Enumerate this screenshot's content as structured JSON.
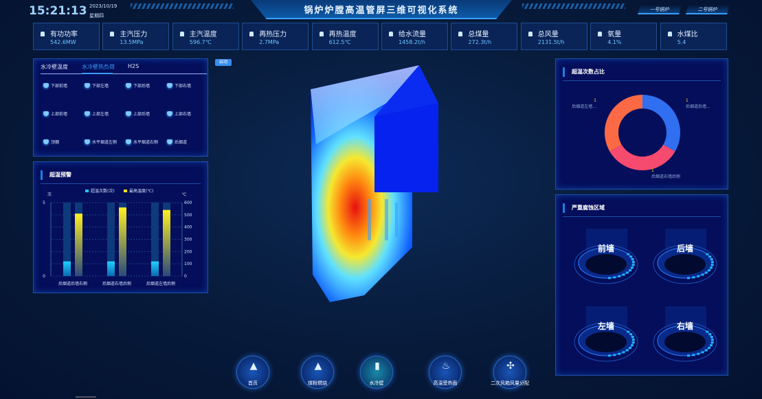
{
  "header": {
    "time": "15:21:13",
    "date": "2023/10/19",
    "weekday": "星期四",
    "title": "锅炉炉膛高温管屏三维可视化系统",
    "boiler_buttons": [
      "一号锅炉",
      "二号锅炉"
    ]
  },
  "kpis": [
    {
      "label": "有功功率",
      "value": "542.6MW"
    },
    {
      "label": "主汽压力",
      "value": "13.5MPa"
    },
    {
      "label": "主汽温度",
      "value": "596.7℃"
    },
    {
      "label": "再热压力",
      "value": "2.7MPa"
    },
    {
      "label": "再热温度",
      "value": "612.5℃"
    },
    {
      "label": "给水流量",
      "value": "1458.2t/h"
    },
    {
      "label": "总煤量",
      "value": "272.3t/h"
    },
    {
      "label": "总风量",
      "value": "2131.5t/h"
    },
    {
      "label": "氧量",
      "value": "4.1%"
    },
    {
      "label": "水煤比",
      "value": "5.4"
    }
  ],
  "walls_panel": {
    "tabs": [
      "水冷壁温度",
      "水冷壁热负荷",
      "H2S"
    ],
    "active_tab": 1,
    "items": [
      "下部前墙",
      "下部左墙",
      "下部后墙",
      "下部右墙",
      "上部前墙",
      "上部左墙",
      "上部后墙",
      "上部右墙",
      "顶棚",
      "水平烟道左侧",
      "水平烟道右侧",
      "后烟道"
    ]
  },
  "start_button": "启动",
  "alarm_panel": {
    "title": "超温预警"
  },
  "chart_data": [
    {
      "type": "bar",
      "categories": [
        "后烟道后墙右侧",
        "后烟道右墙后侧",
        "后烟道左墙后侧"
      ],
      "series": [
        {
          "name": "超温次数(次)",
          "values": [
            1,
            1,
            1
          ],
          "axis": "left",
          "color": "#1fc8ff"
        },
        {
          "name": "最高温度(℃)",
          "values": [
            510,
            560,
            540
          ],
          "axis": "right",
          "color": "#f5e020"
        }
      ],
      "ylabel_left": "次",
      "ylabel_right": "℃",
      "ylim_left": [
        0,
        5
      ],
      "ylim_right": [
        0,
        600
      ],
      "yticks_left": [
        0,
        5
      ],
      "yticks_right": [
        0,
        100,
        200,
        300,
        400,
        500,
        600
      ],
      "legend": "top",
      "grid": true
    },
    {
      "type": "pie",
      "title": "超温次数占比",
      "donut": true,
      "slices": [
        {
          "label": "后烟道后墙...",
          "value": 1,
          "color": "#2f6ff0"
        },
        {
          "label": "后烟道右墙后侧",
          "value": 1,
          "color": "#f64a6e"
        },
        {
          "label": "后烟道左墙...",
          "value": 1,
          "color": "#fb6a45"
        }
      ]
    }
  ],
  "corrosion_panel": {
    "title": "严重腐蚀区域",
    "areas": [
      "前墙",
      "后墙",
      "左墙",
      "右墙"
    ]
  },
  "bottom_nav": [
    {
      "label": "首页",
      "icon": "boiler-icon"
    },
    {
      "label": "煤粉燃烧",
      "icon": "boiler-icon"
    },
    {
      "label": "水冷壁",
      "icon": "water-wall-icon"
    },
    {
      "label": "高温受热面",
      "icon": "flame-icon"
    },
    {
      "label": "二次风箱风量分配",
      "icon": "fan-icon"
    }
  ]
}
